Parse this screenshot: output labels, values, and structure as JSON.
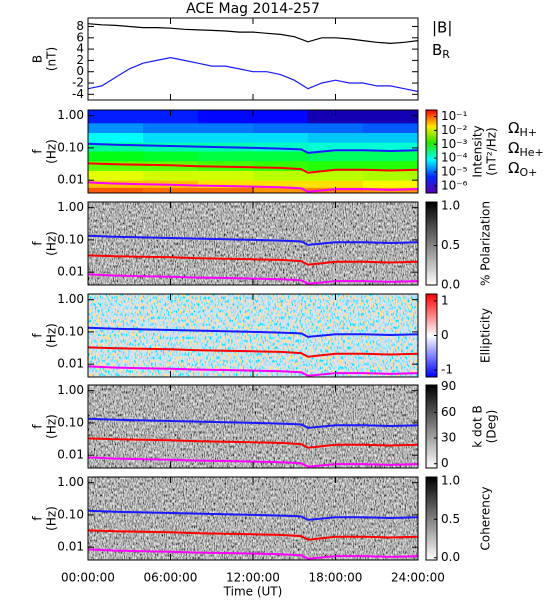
{
  "chart_data": [
    {
      "type": "line",
      "title": "ACE Mag 2014-257",
      "ylabel": "B",
      "yunit": "(nT)",
      "xlim": [
        0,
        24
      ],
      "ylim": [
        -5,
        9.5
      ],
      "yticks": [
        -4,
        -2,
        0,
        2,
        4,
        6,
        8
      ],
      "x": [
        0,
        1,
        2,
        3,
        4,
        5,
        6,
        7,
        8,
        9,
        10,
        11,
        12,
        13,
        14,
        15,
        16,
        17,
        18,
        19,
        20,
        21,
        22,
        23,
        24
      ],
      "series": [
        {
          "name": "|B|",
          "color": "#000000",
          "values": [
            8.5,
            8.3,
            8.2,
            8.0,
            7.8,
            7.8,
            7.7,
            7.5,
            7.4,
            7.3,
            7.2,
            7.0,
            7.0,
            6.8,
            6.6,
            6.2,
            5.3,
            6.0,
            6.0,
            5.8,
            5.5,
            5.2,
            5.0,
            5.2,
            5.5
          ]
        },
        {
          "name": "BR",
          "color": "#1a1aff",
          "values": [
            -3,
            -2.5,
            -1,
            0.5,
            1.5,
            2,
            2.5,
            2,
            1.5,
            1,
            1,
            0.5,
            0,
            0,
            -0.5,
            -1.5,
            -3,
            -2,
            -1.5,
            -2,
            -2,
            -2.5,
            -2.5,
            -3,
            -3.5
          ]
        }
      ]
    },
    {
      "type": "spectrogram",
      "ylabel": "f",
      "yunit": "(Hz)",
      "log_y": true,
      "xlim": [
        0,
        24
      ],
      "ylim": [
        0.004,
        1.5
      ],
      "yticks": [
        0.01,
        {
          "value": 0.1,
          "label": "0.10"
        },
        {
          "value": 1,
          "label": "1.00"
        }
      ],
      "time_edges": [
        0,
        4,
        8,
        12,
        16,
        20,
        24
      ],
      "freq_edges": [
        0.004,
        0.006,
        0.01,
        0.02,
        0.04,
        0.08,
        0.15,
        0.3,
        0.6,
        1.5
      ],
      "cells": [
        [
          0.1,
          0.08,
          0.08,
          0.05,
          0.06,
          0.05
        ],
        [
          0.03,
          0.03,
          0.02,
          0.02,
          0.02,
          0.015
        ],
        [
          0.01,
          0.008,
          0.008,
          0.006,
          0.006,
          0.005
        ],
        [
          0.002,
          0.002,
          0.0015,
          0.0012,
          0.001,
          0.001
        ],
        [
          0.0005,
          0.0004,
          0.0003,
          0.0003,
          0.0002,
          0.0002
        ],
        [
          0.0001,
          8e-05,
          8e-05,
          6e-05,
          5e-05,
          5e-05
        ],
        [
          3e-05,
          2e-05,
          2e-05,
          2e-05,
          1.5e-05,
          1.5e-05
        ],
        [
          8e-06,
          6e-06,
          6e-06,
          5e-06,
          5e-06,
          4e-06
        ],
        [
          2e-06,
          2e-06,
          1.5e-06,
          1.5e-06,
          1e-06,
          1e-06
        ]
      ],
      "x": [
        0,
        2,
        4,
        6,
        8,
        10,
        12,
        14,
        15.5,
        16,
        18,
        20,
        22,
        24
      ],
      "series": [
        {
          "name": "ΩH+",
          "color": "#1a1aff",
          "values": [
            0.135,
            0.125,
            0.12,
            0.115,
            0.11,
            0.105,
            0.1,
            0.095,
            0.09,
            0.07,
            0.085,
            0.085,
            0.08,
            0.085
          ]
        },
        {
          "name": "ΩHe+",
          "color": "#ff0000",
          "values": [
            0.033,
            0.031,
            0.03,
            0.029,
            0.027,
            0.026,
            0.025,
            0.024,
            0.022,
            0.017,
            0.021,
            0.021,
            0.02,
            0.021
          ]
        },
        {
          "name": "ΩO+",
          "color": "#ff00ff",
          "values": [
            0.0085,
            0.0078,
            0.0075,
            0.0072,
            0.0068,
            0.0066,
            0.0063,
            0.006,
            0.0056,
            0.0044,
            0.0053,
            0.0053,
            0.005,
            0.0053
          ]
        }
      ],
      "colorbar": {
        "label": "Intensity",
        "unit": "(nT²/Hz)",
        "colormap": "rainbow",
        "log": true,
        "lim": [
          3e-07,
          0.3
        ],
        "ticks": [
          {
            "value": 1e-06,
            "label": "10⁻⁶"
          },
          {
            "value": 1e-05,
            "label": "10⁻⁵"
          },
          {
            "value": 0.0001,
            "label": "10⁻⁴"
          },
          {
            "value": 0.001,
            "label": "10⁻³"
          },
          {
            "value": 0.01,
            "label": "10⁻²"
          },
          {
            "value": 0.1,
            "label": "10⁻¹"
          }
        ]
      }
    },
    {
      "type": "texture",
      "ylabel": "f",
      "yunit": "(Hz)",
      "log_y": true,
      "xlim": [
        0,
        24
      ],
      "ylim": [
        0.004,
        1.5
      ],
      "yticks": [
        0.01,
        {
          "value": 0.1,
          "label": "0.10"
        },
        {
          "value": 1,
          "label": "1.00"
        }
      ],
      "colorbar": {
        "label": "% Polarization",
        "colormap": "gray",
        "lim": [
          0,
          1.05
        ],
        "ticks": [
          {
            "value": 0,
            "label": "0.0"
          },
          0.5,
          {
            "value": 1,
            "label": "1.0"
          }
        ]
      }
    },
    {
      "type": "texture",
      "ylabel": "f",
      "yunit": "(Hz)",
      "log_y": true,
      "xlim": [
        0,
        24
      ],
      "ylim": [
        0.004,
        1.5
      ],
      "yticks": [
        0.01,
        {
          "value": 0.1,
          "label": "0.10"
        },
        {
          "value": 1,
          "label": "1.00"
        }
      ],
      "colorbar": {
        "label": "Ellipticity",
        "colormap": "bwr",
        "lim": [
          -1.2,
          1.2
        ],
        "ticks": [
          -1,
          0,
          1
        ]
      }
    },
    {
      "type": "texture",
      "ylabel": "f",
      "yunit": "(Hz)",
      "log_y": true,
      "xlim": [
        0,
        24
      ],
      "ylim": [
        0.004,
        1.5
      ],
      "yticks": [
        0.01,
        {
          "value": 0.1,
          "label": "0.10"
        },
        {
          "value": 1,
          "label": "1.00"
        }
      ],
      "colorbar": {
        "label": "k dot B",
        "unit": "(Deg)",
        "colormap": "gray",
        "lim": [
          -5,
          92
        ],
        "ticks": [
          0,
          30,
          60,
          90
        ]
      }
    },
    {
      "type": "texture",
      "ylabel": "f",
      "yunit": "(Hz)",
      "log_y": true,
      "xlim": [
        0,
        24
      ],
      "ylim": [
        0.004,
        1.5
      ],
      "yticks": [
        0.01,
        {
          "value": 0.1,
          "label": "0.10"
        },
        {
          "value": 1,
          "label": "1.00"
        }
      ],
      "xlabel": "Time (UT)",
      "xticks": [
        {
          "value": 0,
          "label": "00:00:00"
        },
        {
          "value": 6,
          "label": "06:00:00"
        },
        {
          "value": 12,
          "label": "12:00:00"
        },
        {
          "value": 18,
          "label": "18:00:00"
        },
        {
          "value": 24,
          "label": "24:00:00"
        }
      ],
      "colorbar": {
        "label": "Coherency",
        "colormap": "gray",
        "lim": [
          -0.03,
          1.05
        ],
        "ticks": [
          {
            "value": 0,
            "label": "0.0"
          },
          0.5,
          {
            "value": 1,
            "label": "1.0"
          }
        ]
      }
    }
  ]
}
